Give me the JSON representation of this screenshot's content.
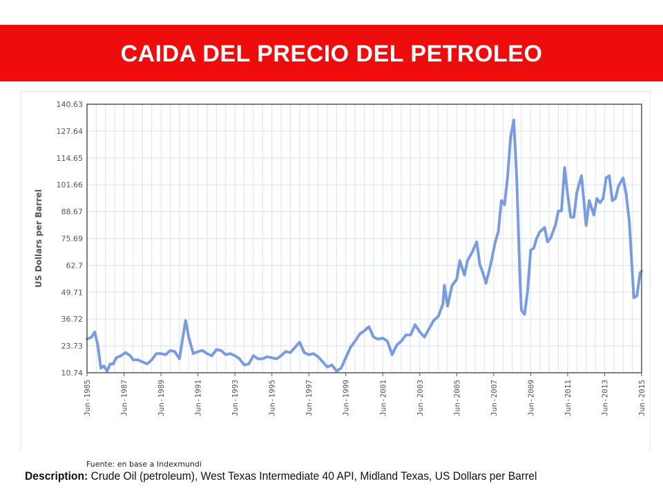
{
  "slide": {
    "title": "CAIDA DEL PRECIO DEL PETROLEO",
    "source_note": "Fuente: en base a Indexmundi",
    "description_label": "Description:",
    "description_text": "Crude Oil (petroleum), West Texas Intermediate 40 API, Midland Texas, US Dollars per Barrel",
    "banner_color": "#ee0c0c"
  },
  "chart_data": {
    "type": "line",
    "title": "",
    "xlabel": "",
    "ylabel": "US Dollars per Barrel",
    "ylim": [
      10.74,
      140.63
    ],
    "y_ticks": [
      "140.63",
      "127.64",
      "114.65",
      "101.66",
      "88.67",
      "75.69",
      "62.7",
      "49.71",
      "36.72",
      "23.73",
      "10.74"
    ],
    "x_ticks": [
      {
        "date": "1985-06",
        "label": "Jun-1985"
      },
      {
        "date": "1987-06",
        "label": "Jun-1987"
      },
      {
        "date": "1989-06",
        "label": "Jun-1989"
      },
      {
        "date": "1991-06",
        "label": "Jun-1991"
      },
      {
        "date": "1993-06",
        "label": "Jun-1993"
      },
      {
        "date": "1995-06",
        "label": "Jun-1995"
      },
      {
        "date": "1997-06",
        "label": "Jun-1997"
      },
      {
        "date": "1999-06",
        "label": "Jun-1999"
      },
      {
        "date": "2001-06",
        "label": "Jun-2001"
      },
      {
        "date": "2003-06",
        "label": "Jun-2003"
      },
      {
        "date": "2005-06",
        "label": "Jun-2005"
      },
      {
        "date": "2007-06",
        "label": "Jun-2007"
      },
      {
        "date": "2009-06",
        "label": "Jun-2009"
      },
      {
        "date": "2011-06",
        "label": "Jun-2011"
      },
      {
        "date": "2013-06",
        "label": "Jun-2013"
      },
      {
        "date": "2015-06",
        "label": "Jun-2015"
      }
    ],
    "xlim": [
      "1985-06",
      "2015-06"
    ],
    "grid": true,
    "legend": "none",
    "line_color": "#7a9be0",
    "series": [
      {
        "name": "",
        "points": [
          [
            "1985-06",
            27
          ],
          [
            "1985-09",
            28
          ],
          [
            "1985-11",
            30.5
          ],
          [
            "1986-01",
            24
          ],
          [
            "1986-03",
            13
          ],
          [
            "1986-05",
            14
          ],
          [
            "1986-07",
            11.5
          ],
          [
            "1986-09",
            15
          ],
          [
            "1986-11",
            15
          ],
          [
            "1987-01",
            18
          ],
          [
            "1987-04",
            19
          ],
          [
            "1987-07",
            20.5
          ],
          [
            "1987-10",
            19
          ],
          [
            "1987-12",
            17
          ],
          [
            "1988-03",
            17
          ],
          [
            "1988-06",
            16
          ],
          [
            "1988-09",
            15
          ],
          [
            "1988-12",
            17
          ],
          [
            "1989-03",
            20
          ],
          [
            "1989-06",
            20
          ],
          [
            "1989-09",
            19.5
          ],
          [
            "1989-12",
            21.5
          ],
          [
            "1990-03",
            21
          ],
          [
            "1990-06",
            17.5
          ],
          [
            "1990-08",
            27
          ],
          [
            "1990-10",
            36
          ],
          [
            "1990-12",
            28
          ],
          [
            "1991-03",
            20
          ],
          [
            "1991-06",
            21
          ],
          [
            "1991-09",
            21.5
          ],
          [
            "1991-12",
            20
          ],
          [
            "1992-03",
            19
          ],
          [
            "1992-06",
            22
          ],
          [
            "1992-09",
            21.5
          ],
          [
            "1992-12",
            19.5
          ],
          [
            "1993-03",
            20
          ],
          [
            "1993-06",
            19
          ],
          [
            "1993-09",
            17.5
          ],
          [
            "1993-12",
            14.5
          ],
          [
            "1994-03",
            15
          ],
          [
            "1994-06",
            19
          ],
          [
            "1994-09",
            17.5
          ],
          [
            "1994-12",
            17.5
          ],
          [
            "1995-03",
            18.5
          ],
          [
            "1995-06",
            18
          ],
          [
            "1995-09",
            17.5
          ],
          [
            "1995-12",
            19
          ],
          [
            "1996-03",
            21
          ],
          [
            "1996-06",
            20.5
          ],
          [
            "1996-09",
            23
          ],
          [
            "1996-12",
            25.5
          ],
          [
            "1997-03",
            20.5
          ],
          [
            "1997-06",
            19.5
          ],
          [
            "1997-09",
            20
          ],
          [
            "1997-12",
            18.5
          ],
          [
            "1998-03",
            16
          ],
          [
            "1998-06",
            13.5
          ],
          [
            "1998-09",
            14.5
          ],
          [
            "1998-12",
            11.5
          ],
          [
            "1999-03",
            13
          ],
          [
            "1999-06",
            18
          ],
          [
            "1999-09",
            23
          ],
          [
            "1999-12",
            26
          ],
          [
            "2000-03",
            29.5
          ],
          [
            "2000-06",
            31
          ],
          [
            "2000-09",
            33
          ],
          [
            "2000-12",
            28
          ],
          [
            "2001-03",
            27
          ],
          [
            "2001-06",
            27.5
          ],
          [
            "2001-09",
            26
          ],
          [
            "2001-12",
            19.5
          ],
          [
            "2002-03",
            24
          ],
          [
            "2002-06",
            26
          ],
          [
            "2002-09",
            29
          ],
          [
            "2002-12",
            29
          ],
          [
            "2003-03",
            34
          ],
          [
            "2003-06",
            30.5
          ],
          [
            "2003-09",
            28
          ],
          [
            "2003-12",
            32
          ],
          [
            "2004-03",
            36
          ],
          [
            "2004-06",
            38
          ],
          [
            "2004-09",
            44
          ],
          [
            "2004-10",
            53
          ],
          [
            "2004-12",
            43
          ],
          [
            "2005-03",
            53
          ],
          [
            "2005-06",
            56
          ],
          [
            "2005-08",
            65
          ],
          [
            "2005-11",
            58
          ],
          [
            "2006-01",
            65
          ],
          [
            "2006-04",
            69
          ],
          [
            "2006-07",
            74
          ],
          [
            "2006-09",
            63
          ],
          [
            "2006-11",
            59
          ],
          [
            "2007-01",
            54
          ],
          [
            "2007-04",
            63
          ],
          [
            "2007-07",
            74
          ],
          [
            "2007-09",
            79
          ],
          [
            "2007-11",
            94
          ],
          [
            "2008-01",
            92
          ],
          [
            "2008-03",
            105
          ],
          [
            "2008-05",
            125
          ],
          [
            "2008-07",
            133
          ],
          [
            "2008-09",
            104
          ],
          [
            "2008-11",
            57
          ],
          [
            "2008-12",
            41
          ],
          [
            "2009-02",
            39
          ],
          [
            "2009-04",
            50
          ],
          [
            "2009-06",
            70
          ],
          [
            "2009-08",
            71
          ],
          [
            "2009-10",
            76
          ],
          [
            "2009-12",
            79
          ],
          [
            "2010-03",
            81
          ],
          [
            "2010-05",
            74
          ],
          [
            "2010-07",
            76
          ],
          [
            "2010-10",
            82
          ],
          [
            "2010-12",
            89
          ],
          [
            "2011-02",
            89
          ],
          [
            "2011-04",
            110
          ],
          [
            "2011-06",
            97
          ],
          [
            "2011-08",
            86
          ],
          [
            "2011-10",
            86
          ],
          [
            "2011-12",
            98
          ],
          [
            "2012-03",
            106
          ],
          [
            "2012-06",
            82
          ],
          [
            "2012-08",
            94
          ],
          [
            "2012-11",
            87
          ],
          [
            "2013-01",
            95
          ],
          [
            "2013-03",
            93
          ],
          [
            "2013-05",
            95
          ],
          [
            "2013-07",
            105
          ],
          [
            "2013-09",
            106
          ],
          [
            "2013-11",
            94
          ],
          [
            "2014-01",
            95
          ],
          [
            "2014-03",
            101
          ],
          [
            "2014-06",
            105
          ],
          [
            "2014-08",
            97
          ],
          [
            "2014-10",
            84
          ],
          [
            "2014-12",
            59
          ],
          [
            "2015-01",
            47
          ],
          [
            "2015-03",
            48
          ],
          [
            "2015-05",
            59
          ],
          [
            "2015-06",
            60
          ]
        ]
      }
    ]
  }
}
